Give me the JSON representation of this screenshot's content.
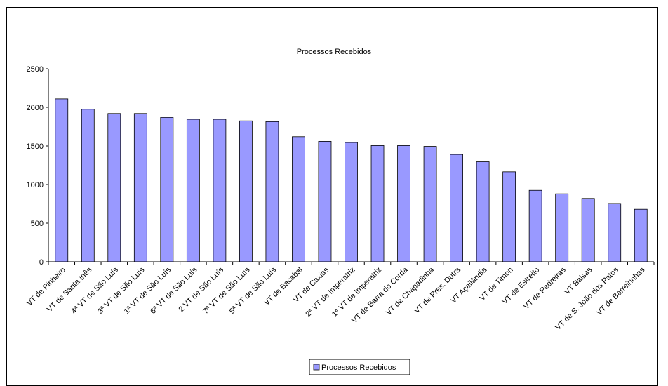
{
  "chart_data": {
    "type": "bar",
    "title": "Processos Recebidos",
    "xlabel": "",
    "ylabel": "",
    "ylim": [
      0,
      2500
    ],
    "yticks": [
      0,
      500,
      1000,
      1500,
      2000,
      2500
    ],
    "grid": false,
    "legend_position": "bottom",
    "bar_color": "#9999ff",
    "categories": [
      "VT de Pinheiro",
      "VT de Santa Inês",
      "4ª VT de São Luís",
      "3ª VT de São Luís",
      "1ª VT de São Luís",
      "6ª VT de São Luís",
      "2 VT de São Luís",
      "7ª VT de São Luís",
      "5ª VT de São Luís",
      "VT de Bacabal",
      "VT de Caxias",
      "2ª VT de Imperatriz",
      "1ª VT de Imperatriz",
      "VT de Barra do Corda",
      "VT de Chapadinha",
      "VT de Pres. Dutra",
      "VT Açailândia",
      "VT de Timon",
      "VT de Estreito",
      "VT de Pedreiras",
      "VT Balsas",
      "VT de S. João dos Patos",
      "VT de Barreirinhas"
    ],
    "series": [
      {
        "name": "Processos Recebidos",
        "values": [
          2110,
          1975,
          1920,
          1920,
          1870,
          1845,
          1845,
          1825,
          1815,
          1620,
          1560,
          1545,
          1505,
          1505,
          1495,
          1390,
          1295,
          1165,
          925,
          880,
          820,
          755,
          680
        ]
      }
    ]
  }
}
